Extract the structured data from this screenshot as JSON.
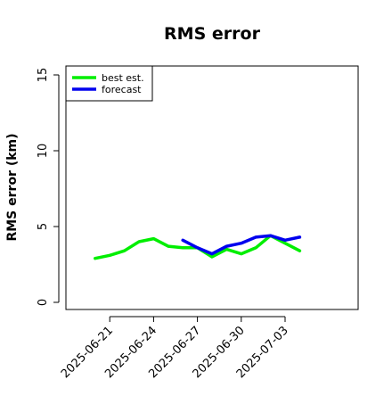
{
  "chart_data": {
    "type": "line",
    "title": "RMS error",
    "xlabel": "",
    "ylabel": "RMS error (km)",
    "ylim": [
      0,
      15
    ],
    "yticks": [
      0,
      5,
      10,
      15
    ],
    "xticks": [
      "2025-06-21",
      "2025-06-24",
      "2025-06-27",
      "2025-06-30",
      "2025-07-03"
    ],
    "xlim": [
      "2025-06-18",
      "2025-07-08"
    ],
    "grid": false,
    "legend_position": "top-left",
    "series": [
      {
        "name": "best est.",
        "color": "#00ee00",
        "x": [
          "2025-06-20",
          "2025-06-21",
          "2025-06-22",
          "2025-06-23",
          "2025-06-24",
          "2025-06-25",
          "2025-06-26",
          "2025-06-27",
          "2025-06-28",
          "2025-06-29",
          "2025-06-30",
          "2025-07-01",
          "2025-07-02",
          "2025-07-03",
          "2025-07-04"
        ],
        "values": [
          2.9,
          3.1,
          3.4,
          4.0,
          4.2,
          3.7,
          3.6,
          3.6,
          3.0,
          3.5,
          3.2,
          3.6,
          4.4,
          3.9,
          3.4
        ]
      },
      {
        "name": "forecast",
        "color": "#0000ee",
        "x": [
          "2025-06-26",
          "2025-06-27",
          "2025-06-28",
          "2025-06-29",
          "2025-06-30",
          "2025-07-01",
          "2025-07-02",
          "2025-07-03",
          "2025-07-04"
        ],
        "values": [
          4.1,
          3.6,
          3.2,
          3.7,
          3.9,
          4.3,
          4.4,
          4.1,
          4.3
        ]
      }
    ]
  }
}
